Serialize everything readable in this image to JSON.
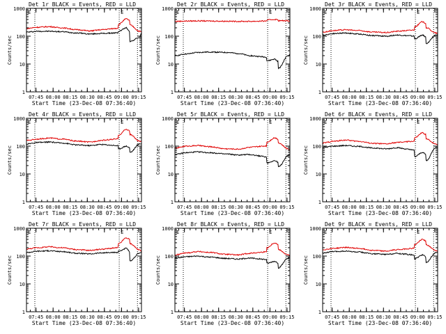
{
  "figure": {
    "background": "#ffffff"
  },
  "chart_data": [
    {
      "type": "line",
      "title": "Det 1r BLACK = Events, RED = LLD",
      "xlabel": "Start Time (23-Dec-08 07:36:40)",
      "ylabel": "Counts/sec",
      "yscale": "log",
      "ylim": [
        1,
        1000
      ],
      "xlim": [
        "07:36:40",
        "09:17:30"
      ],
      "x_ticks": [
        "07:45",
        "08:00",
        "08:15",
        "08:30",
        "08:45",
        "09:00",
        "09:15"
      ],
      "y_ticks": [
        "1",
        "10",
        "100",
        "1000"
      ],
      "vlines": [
        "07:44",
        "08:58",
        "09:14"
      ],
      "annotation": "E",
      "grid": false,
      "series": [
        {
          "color": "#000000",
          "values": [
            140,
            150,
            150,
            145,
            130,
            120,
            125,
            150,
            200,
            65,
            90,
            130
          ]
        },
        {
          "color": "#e00000",
          "values": [
            190,
            210,
            220,
            200,
            170,
            155,
            170,
            270,
            420,
            250,
            150,
            140
          ]
        }
      ]
    },
    {
      "type": "line",
      "title": "Det 2r BLACK = Events, RED = LLD",
      "xlabel": "Start Time (23-Dec-08 07:36:40)",
      "ylabel": "Counts/sec",
      "yscale": "log",
      "ylim": [
        1,
        1000
      ],
      "xlim": [
        "07:36:40",
        "09:17:30"
      ],
      "x_ticks": [
        "07:45",
        "08:00",
        "08:15",
        "08:30",
        "08:45",
        "09:00",
        "09:15"
      ],
      "y_ticks": [
        "1",
        "10",
        "100",
        "1000"
      ],
      "vlines": [
        "07:44",
        "08:58",
        "09:14"
      ],
      "annotation": "E",
      "grid": false,
      "series": [
        {
          "color": "#000000",
          "values": [
            20,
            23,
            26,
            27,
            26,
            24,
            20,
            13,
            15,
            7,
            20,
            21
          ]
        },
        {
          "color": "#e00000",
          "values": [
            340,
            350,
            355,
            350,
            345,
            340,
            340,
            380,
            400,
            360,
            360,
            350
          ]
        }
      ]
    },
    {
      "type": "line",
      "title": "Det 3r BLACK = Events, RED = LLD",
      "xlabel": "Start Time (23-Dec-08 07:36:40)",
      "ylabel": "Counts/sec",
      "yscale": "log",
      "ylim": [
        1,
        1000
      ],
      "xlim": [
        "07:36:40",
        "09:17:30"
      ],
      "x_ticks": [
        "07:45",
        "08:00",
        "08:15",
        "08:30",
        "08:45",
        "09:00",
        "09:15"
      ],
      "y_ticks": [
        "1",
        "10",
        "100",
        "1000"
      ],
      "vlines": [
        "07:44",
        "08:58",
        "09:14"
      ],
      "annotation": "E",
      "grid": false,
      "series": [
        {
          "color": "#000000",
          "values": [
            110,
            125,
            130,
            120,
            105,
            100,
            110,
            80,
            110,
            55,
            110,
            115
          ]
        },
        {
          "color": "#e00000",
          "values": [
            140,
            160,
            170,
            160,
            140,
            135,
            150,
            220,
            330,
            200,
            130,
            125
          ]
        }
      ]
    },
    {
      "type": "line",
      "title": "Det 4r BLACK = Events, RED = LLD",
      "xlabel": "Start Time (23-Dec-08 07:36:40)",
      "ylabel": "Counts/sec",
      "yscale": "log",
      "ylim": [
        1,
        1000
      ],
      "xlim": [
        "07:36:40",
        "09:17:30"
      ],
      "x_ticks": [
        "07:45",
        "08:00",
        "08:15",
        "08:30",
        "08:45",
        "09:00",
        "09:15"
      ],
      "y_ticks": [
        "1",
        "10",
        "100",
        "1000"
      ],
      "vlines": [
        "07:44",
        "08:58",
        "09:14"
      ],
      "annotation": "E",
      "grid": false,
      "series": [
        {
          "color": "#000000",
          "values": [
            120,
            135,
            140,
            130,
            110,
            105,
            115,
            80,
            100,
            60,
            120,
            125
          ]
        },
        {
          "color": "#e00000",
          "values": [
            160,
            180,
            195,
            180,
            150,
            140,
            160,
            250,
            400,
            260,
            150,
            145
          ]
        }
      ]
    },
    {
      "type": "line",
      "title": "Det 5r BLACK = Events, RED = LLD",
      "xlabel": "Start Time (23-Dec-08 07:36:40)",
      "ylabel": "Counts/sec",
      "yscale": "log",
      "ylim": [
        1,
        1000
      ],
      "xlim": [
        "07:36:40",
        "09:17:30"
      ],
      "x_ticks": [
        "07:45",
        "08:00",
        "08:15",
        "08:30",
        "08:45",
        "09:00",
        "09:15"
      ],
      "y_ticks": [
        "1",
        "10",
        "100",
        "1000"
      ],
      "vlines": [
        "07:44",
        "08:58",
        "09:14"
      ],
      "annotation": "E",
      "grid": false,
      "series": [
        {
          "color": "#000000",
          "values": [
            50,
            58,
            62,
            58,
            52,
            48,
            50,
            25,
            30,
            18,
            45,
            50
          ]
        },
        {
          "color": "#e00000",
          "values": [
            85,
            100,
            105,
            95,
            80,
            78,
            90,
            140,
            200,
            130,
            80,
            75
          ]
        }
      ]
    },
    {
      "type": "line",
      "title": "Det 6r BLACK = Events, RED = LLD",
      "xlabel": "Start Time (23-Dec-08 07:36:40)",
      "ylabel": "Counts/sec",
      "yscale": "log",
      "ylim": [
        1,
        1000
      ],
      "xlim": [
        "07:36:40",
        "09:17:30"
      ],
      "x_ticks": [
        "07:45",
        "08:00",
        "08:15",
        "08:30",
        "08:45",
        "09:00",
        "09:15"
      ],
      "y_ticks": [
        "1",
        "10",
        "100",
        "1000"
      ],
      "vlines": [
        "07:44",
        "08:58",
        "09:14"
      ],
      "annotation": "E",
      "grid": false,
      "series": [
        {
          "color": "#000000",
          "values": [
            90,
            100,
            105,
            98,
            85,
            80,
            88,
            42,
            60,
            30,
            90,
            92
          ]
        },
        {
          "color": "#e00000",
          "values": [
            130,
            150,
            165,
            150,
            125,
            120,
            135,
            200,
            300,
            180,
            120,
            115
          ]
        }
      ]
    },
    {
      "type": "line",
      "title": "Det 7r BLACK = Events, RED = LLD",
      "xlabel": "Start Time (23-Dec-08 07:36:40)",
      "ylabel": "Counts/sec",
      "yscale": "log",
      "ylim": [
        1,
        1000
      ],
      "xlim": [
        "07:36:40",
        "09:17:30"
      ],
      "x_ticks": [
        "07:45",
        "08:00",
        "08:15",
        "08:30",
        "08:45",
        "09:00",
        "09:15"
      ],
      "y_ticks": [
        "1",
        "10",
        "100",
        "1000"
      ],
      "vlines": [
        "07:44",
        "08:58",
        "09:14"
      ],
      "annotation": "E",
      "grid": false,
      "series": [
        {
          "color": "#000000",
          "values": [
            135,
            150,
            155,
            145,
            125,
            120,
            130,
            150,
            190,
            65,
            130,
            135
          ]
        },
        {
          "color": "#e00000",
          "values": [
            180,
            200,
            215,
            200,
            170,
            160,
            175,
            280,
            450,
            280,
            165,
            150
          ]
        }
      ]
    },
    {
      "type": "line",
      "title": "Det 8r BLACK = Events, RED = LLD",
      "xlabel": "Start Time (23-Dec-08 07:36:40)",
      "ylabel": "Counts/sec",
      "yscale": "log",
      "ylim": [
        1,
        1000
      ],
      "xlim": [
        "07:36:40",
        "09:17:30"
      ],
      "x_ticks": [
        "07:45",
        "08:00",
        "08:15",
        "08:30",
        "08:45",
        "09:00",
        "09:15"
      ],
      "y_ticks": [
        "1",
        "10",
        "100",
        "1000"
      ],
      "vlines": [
        "07:44",
        "08:58",
        "09:14"
      ],
      "annotation": "E",
      "grid": false,
      "series": [
        {
          "color": "#000000",
          "values": [
            85,
            95,
            100,
            92,
            82,
            78,
            85,
            55,
            65,
            38,
            85,
            88
          ]
        },
        {
          "color": "#e00000",
          "values": [
            110,
            130,
            145,
            135,
            115,
            110,
            125,
            200,
            300,
            170,
            110,
            105
          ]
        }
      ]
    },
    {
      "type": "line",
      "title": "Det 9r BLACK = Events, RED = LLD",
      "xlabel": "Start Time (23-Dec-08 07:36:40)",
      "ylabel": "Counts/sec",
      "yscale": "log",
      "ylim": [
        1,
        1000
      ],
      "xlim": [
        "07:36:40",
        "09:17:30"
      ],
      "x_ticks": [
        "07:45",
        "08:00",
        "08:15",
        "08:30",
        "08:45",
        "09:00",
        "09:15"
      ],
      "y_ticks": [
        "1",
        "10",
        "100",
        "1000"
      ],
      "vlines": [
        "07:44",
        "08:58",
        "09:14"
      ],
      "annotation": "E",
      "grid": false,
      "series": [
        {
          "color": "#000000",
          "values": [
            130,
            145,
            150,
            140,
            120,
            115,
            125,
            80,
            110,
            60,
            130,
            132
          ]
        },
        {
          "color": "#e00000",
          "values": [
            170,
            190,
            205,
            190,
            160,
            150,
            170,
            260,
            400,
            250,
            160,
            145
          ]
        }
      ]
    }
  ]
}
